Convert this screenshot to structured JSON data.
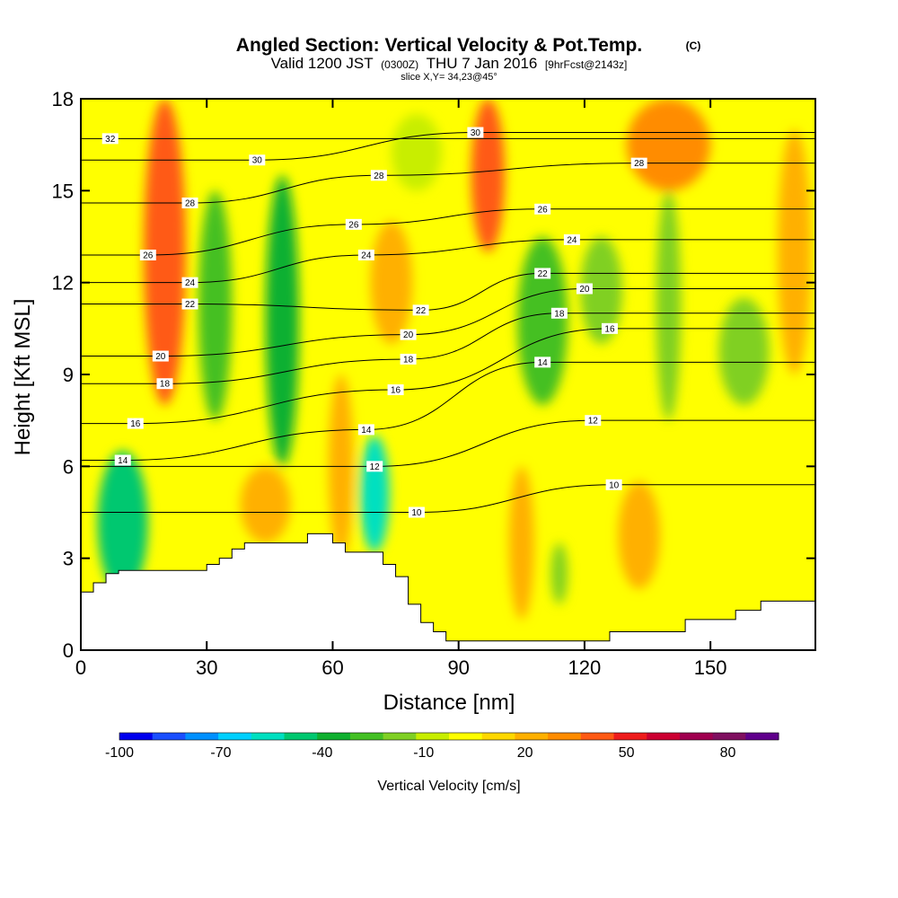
{
  "chart_data": {
    "type": "heatmap",
    "title": "Angled Section: Vertical Velocity & Pot.Temp.",
    "title_mark": "(C)",
    "subtitle_parts": [
      "Valid 1200 JST",
      "(0300Z)",
      "THU 7 Jan 2016",
      "[9hrFcst@2143z]"
    ],
    "slice_note": "slice X,Y= 34,23@45°",
    "xlabel": "Distance [nm]",
    "ylabel": "Height [Kft MSL]",
    "xlim": [
      0,
      175
    ],
    "ylim": [
      0,
      18
    ],
    "x_ticks": [
      "0",
      "30",
      "60",
      "90",
      "120",
      "150"
    ],
    "x_tick_values": [
      0,
      30,
      60,
      90,
      120,
      150
    ],
    "y_ticks": [
      "0",
      "3",
      "6",
      "9",
      "12",
      "15",
      "18"
    ],
    "y_tick_values": [
      0,
      3,
      6,
      9,
      12,
      15,
      18
    ],
    "colorbar": {
      "label": "Vertical Velocity [cm/s]",
      "tick_labels": [
        "-100",
        "-70",
        "-40",
        "-10",
        "20",
        "50",
        "80"
      ],
      "tick_values": [
        -100,
        -70,
        -40,
        -10,
        20,
        50,
        80
      ],
      "range": [
        -100,
        95
      ],
      "colors": [
        "#0000ee",
        "#1a4fff",
        "#0090ff",
        "#00d0ff",
        "#00e0c0",
        "#00c870",
        "#10b030",
        "#44c024",
        "#80d024",
        "#c8ee00",
        "#ffff00",
        "#ffd800",
        "#ffb000",
        "#ff8c00",
        "#ff5a14",
        "#ee1c1c",
        "#cc0032",
        "#a00050",
        "#801060",
        "#60008c"
      ]
    },
    "velocity_bands": [
      {
        "x": 10,
        "half_width": 6,
        "ymin": 1.8,
        "ymax": 6.5,
        "value": -45
      },
      {
        "x": 20,
        "half_width": 5,
        "ymin": 8,
        "ymax": 18,
        "value": 45
      },
      {
        "x": 32,
        "half_width": 4,
        "ymin": 7.5,
        "ymax": 15,
        "value": -30
      },
      {
        "x": 44,
        "half_width": 6,
        "ymin": 3.5,
        "ymax": 6,
        "value": 25
      },
      {
        "x": 48,
        "half_width": 4,
        "ymin": 6,
        "ymax": 15.5,
        "value": -32
      },
      {
        "x": 62,
        "half_width": 3,
        "ymin": 3,
        "ymax": 9,
        "value": 22
      },
      {
        "x": 70,
        "half_width": 3.5,
        "ymin": 3.2,
        "ymax": 7,
        "value": -58
      },
      {
        "x": 74,
        "half_width": 5,
        "ymin": 10,
        "ymax": 14,
        "value": 18
      },
      {
        "x": 80,
        "half_width": 6,
        "ymin": 15,
        "ymax": 17.5,
        "value": -8
      },
      {
        "x": 97,
        "half_width": 4,
        "ymin": 13,
        "ymax": 18,
        "value": 42
      },
      {
        "x": 105,
        "half_width": 3,
        "ymin": 1,
        "ymax": 6,
        "value": 26
      },
      {
        "x": 110,
        "half_width": 6,
        "ymin": 8,
        "ymax": 13.5,
        "value": -30
      },
      {
        "x": 114,
        "half_width": 2,
        "ymin": 1.5,
        "ymax": 3.5,
        "value": -20
      },
      {
        "x": 124,
        "half_width": 5,
        "ymin": 10,
        "ymax": 13.5,
        "value": -22
      },
      {
        "x": 133,
        "half_width": 5,
        "ymin": 2,
        "ymax": 5.5,
        "value": 26
      },
      {
        "x": 140,
        "half_width": 3,
        "ymin": 7.5,
        "ymax": 15,
        "value": -22
      },
      {
        "x": 140,
        "half_width": 10,
        "ymin": 15,
        "ymax": 18,
        "value": 28
      },
      {
        "x": 158,
        "half_width": 6,
        "ymin": 8,
        "ymax": 11.5,
        "value": -18
      },
      {
        "x": 170,
        "half_width": 4,
        "ymin": 9,
        "ymax": 17,
        "value": 18
      }
    ],
    "terrain": {
      "x": [
        0,
        3,
        3,
        6,
        6,
        9,
        9,
        30,
        30,
        33,
        33,
        36,
        36,
        39,
        39,
        42,
        42,
        54,
        54,
        60,
        60,
        63,
        63,
        72,
        72,
        75,
        75,
        78,
        78,
        81,
        81,
        84,
        84,
        87,
        87,
        90,
        90,
        102,
        102,
        126,
        126,
        132,
        132,
        141,
        141,
        144,
        144,
        153,
        153,
        156,
        156,
        159,
        159,
        162,
        162,
        168,
        168,
        175
      ],
      "y": [
        1.9,
        1.9,
        2.2,
        2.2,
        2.5,
        2.5,
        2.6,
        2.6,
        2.8,
        2.8,
        3.0,
        3.0,
        3.3,
        3.3,
        3.5,
        3.5,
        3.5,
        3.5,
        3.8,
        3.8,
        3.5,
        3.5,
        3.2,
        3.2,
        2.8,
        2.8,
        2.4,
        2.4,
        1.5,
        1.5,
        0.9,
        0.9,
        0.6,
        0.6,
        0.3,
        0.3,
        0.3,
        0.3,
        0.3,
        0.3,
        0.6,
        0.6,
        0.6,
        0.6,
        0.6,
        0.6,
        1.0,
        1.0,
        1.0,
        1.0,
        1.3,
        1.3,
        1.3,
        1.3,
        1.6,
        1.6,
        1.6,
        1.6
      ]
    },
    "theta_contours": [
      {
        "value": 10,
        "label": "10",
        "label_x": 80,
        "label_y": 4.5
      },
      {
        "value": 10,
        "label": "10",
        "label_x": 127,
        "label_y": 5.4
      },
      {
        "value": 12,
        "label": "12",
        "label_x": 70,
        "label_y": 6
      },
      {
        "value": 12,
        "label": "12",
        "label_x": 122,
        "label_y": 7.5
      },
      {
        "value": 14,
        "label": "14",
        "label_x": 10,
        "label_y": 6.2
      },
      {
        "value": 14,
        "label": "14",
        "label_x": 68,
        "label_y": 7.2
      },
      {
        "value": 14,
        "label": "14",
        "label_x": 110,
        "label_y": 9.4
      },
      {
        "value": 16,
        "label": "16",
        "label_x": 13,
        "label_y": 7.4
      },
      {
        "value": 16,
        "label": "16",
        "label_x": 75,
        "label_y": 8.5
      },
      {
        "value": 16,
        "label": "16",
        "label_x": 126,
        "label_y": 10.5
      },
      {
        "value": 18,
        "label": "18",
        "label_x": 20,
        "label_y": 8.7
      },
      {
        "value": 18,
        "label": "18",
        "label_x": 78,
        "label_y": 9.5
      },
      {
        "value": 18,
        "label": "18",
        "label_x": 114,
        "label_y": 11
      },
      {
        "value": 20,
        "label": "20",
        "label_x": 19,
        "label_y": 9.6
      },
      {
        "value": 20,
        "label": "20",
        "label_x": 78,
        "label_y": 10.3
      },
      {
        "value": 20,
        "label": "20",
        "label_x": 120,
        "label_y": 11.8
      },
      {
        "value": 22,
        "label": "22",
        "label_x": 26,
        "label_y": 11.3
      },
      {
        "value": 22,
        "label": "22",
        "label_x": 81,
        "label_y": 11.1
      },
      {
        "value": 22,
        "label": "22",
        "label_x": 110,
        "label_y": 12.3
      },
      {
        "value": 24,
        "label": "24",
        "label_x": 26,
        "label_y": 12
      },
      {
        "value": 24,
        "label": "24",
        "label_x": 68,
        "label_y": 12.9
      },
      {
        "value": 24,
        "label": "24",
        "label_x": 117,
        "label_y": 13.4
      },
      {
        "value": 26,
        "label": "26",
        "label_x": 16,
        "label_y": 12.9
      },
      {
        "value": 26,
        "label": "26",
        "label_x": 65,
        "label_y": 13.9
      },
      {
        "value": 26,
        "label": "26",
        "label_x": 110,
        "label_y": 14.4
      },
      {
        "value": 28,
        "label": "28",
        "label_x": 26,
        "label_y": 14.6
      },
      {
        "value": 28,
        "label": "28",
        "label_x": 71,
        "label_y": 15.5
      },
      {
        "value": 28,
        "label": "28",
        "label_x": 133,
        "label_y": 15.9
      },
      {
        "value": 30,
        "label": "30",
        "label_x": 42,
        "label_y": 16
      },
      {
        "value": 30,
        "label": "30",
        "label_x": 94,
        "label_y": 16.9
      },
      {
        "value": 32,
        "label": "32",
        "label_x": 7,
        "label_y": 16.7
      }
    ],
    "colors": {
      "terrain_fill": "#ffffff",
      "contour_line": "#000000",
      "label_box": "#ffffff"
    }
  }
}
